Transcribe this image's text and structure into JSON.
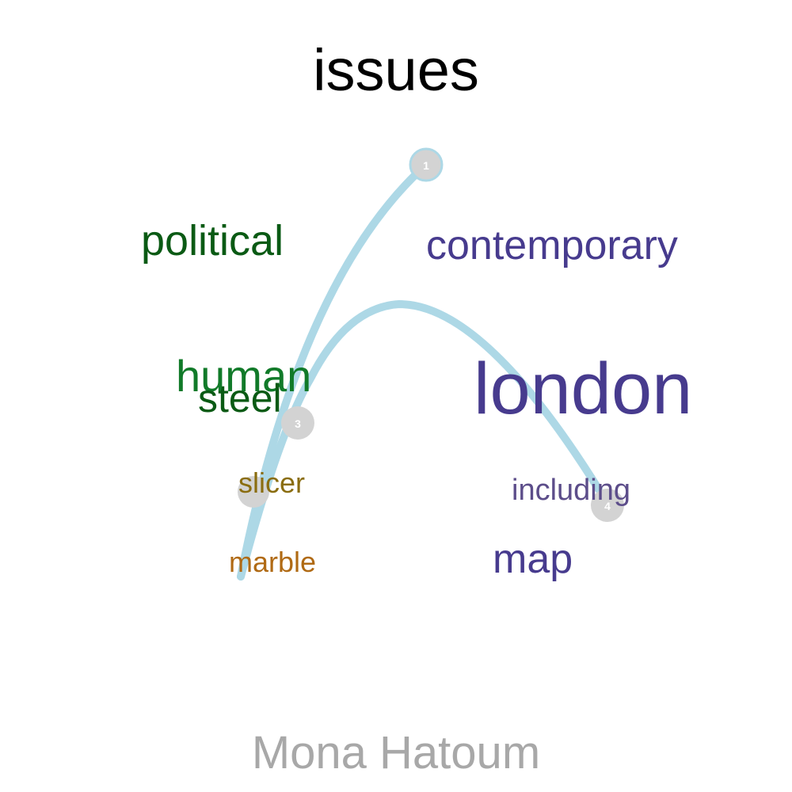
{
  "title": "issues",
  "caption": "Mona Hatoum",
  "words": {
    "political": "political",
    "contemporary": "contemporary",
    "human": "human",
    "steel": "steel",
    "london": "london",
    "slicer": "slicer",
    "including": "including",
    "marble": "marble",
    "map": "map"
  },
  "nodes": {
    "n1": "1",
    "n3": "3",
    "n4": "4"
  },
  "colors": {
    "path": "#add8e6",
    "node": "#d3d3d3",
    "node_label": "#ffffff"
  }
}
